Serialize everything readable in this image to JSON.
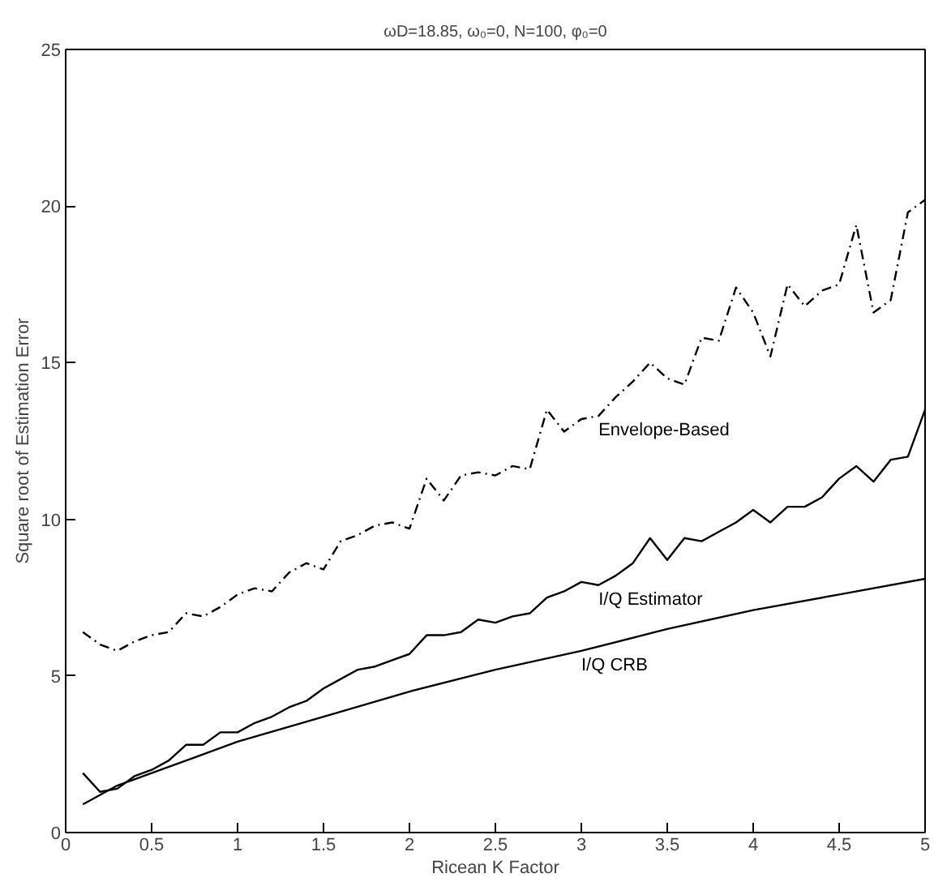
{
  "chart_data": {
    "type": "line",
    "title": "ωD=18.85, ω₀=0, N=100, φ₀=0",
    "xlabel": "Ricean K Factor",
    "ylabel": "Square root of Estimation Error",
    "xlim": [
      0,
      5
    ],
    "ylim": [
      0,
      25
    ],
    "xticks": [
      0,
      0.5,
      1,
      1.5,
      2,
      2.5,
      3,
      3.5,
      4,
      4.5,
      5
    ],
    "yticks": [
      0,
      5,
      10,
      15,
      20,
      25
    ],
    "grid": false,
    "marker": "none",
    "series": [
      {
        "name": "Envelope-Based",
        "color": "#000000",
        "line_style": "dashdot",
        "x": [
          0.1,
          0.2,
          0.3,
          0.4,
          0.5,
          0.6,
          0.7,
          0.8,
          0.9,
          1.0,
          1.1,
          1.2,
          1.3,
          1.4,
          1.5,
          1.6,
          1.7,
          1.8,
          1.9,
          2.0,
          2.1,
          2.2,
          2.3,
          2.4,
          2.5,
          2.6,
          2.7,
          2.8,
          2.9,
          3.0,
          3.1,
          3.2,
          3.3,
          3.4,
          3.5,
          3.6,
          3.7,
          3.8,
          3.9,
          4.0,
          4.1,
          4.2,
          4.3,
          4.4,
          4.5,
          4.6,
          4.7,
          4.8,
          4.9,
          5.0
        ],
        "values": [
          6.4,
          6.0,
          5.8,
          6.1,
          6.3,
          6.4,
          7.0,
          6.9,
          7.2,
          7.6,
          7.8,
          7.7,
          8.3,
          8.6,
          8.4,
          9.3,
          9.5,
          9.8,
          9.9,
          9.7,
          11.3,
          10.6,
          11.4,
          11.5,
          11.4,
          11.7,
          11.6,
          13.5,
          12.8,
          13.2,
          13.3,
          13.9,
          14.4,
          15.0,
          14.5,
          14.3,
          15.8,
          15.7,
          17.4,
          16.6,
          15.2,
          17.5,
          16.8,
          17.3,
          17.5,
          19.4,
          16.6,
          17.0,
          19.8,
          20.2
        ]
      },
      {
        "name": "I/Q Estimator",
        "color": "#000000",
        "line_style": "solid",
        "x": [
          0.1,
          0.2,
          0.3,
          0.4,
          0.5,
          0.6,
          0.7,
          0.8,
          0.9,
          1.0,
          1.1,
          1.2,
          1.3,
          1.4,
          1.5,
          1.6,
          1.7,
          1.8,
          1.9,
          2.0,
          2.1,
          2.2,
          2.3,
          2.4,
          2.5,
          2.6,
          2.7,
          2.8,
          2.9,
          3.0,
          3.1,
          3.2,
          3.3,
          3.4,
          3.5,
          3.6,
          3.7,
          3.8,
          3.9,
          4.0,
          4.1,
          4.2,
          4.3,
          4.4,
          4.5,
          4.6,
          4.7,
          4.8,
          4.9,
          5.0
        ],
        "values": [
          1.9,
          1.3,
          1.4,
          1.8,
          2.0,
          2.3,
          2.8,
          2.8,
          3.2,
          3.2,
          3.5,
          3.7,
          4.0,
          4.2,
          4.6,
          4.9,
          5.2,
          5.3,
          5.5,
          5.7,
          6.3,
          6.3,
          6.4,
          6.8,
          6.7,
          6.9,
          7.0,
          7.5,
          7.7,
          8.0,
          7.9,
          8.2,
          8.6,
          9.4,
          8.7,
          9.4,
          9.3,
          9.6,
          9.9,
          10.3,
          9.9,
          10.4,
          10.4,
          10.7,
          11.3,
          11.7,
          11.2,
          11.9,
          12.0,
          13.5
        ]
      },
      {
        "name": "I/Q CRB",
        "color": "#000000",
        "line_style": "solid",
        "x": [
          0.1,
          0.3,
          0.5,
          0.75,
          1.0,
          1.5,
          2.0,
          2.5,
          3.0,
          3.5,
          4.0,
          4.5,
          5.0
        ],
        "values": [
          0.9,
          1.5,
          1.9,
          2.4,
          2.9,
          3.7,
          4.5,
          5.2,
          5.8,
          6.5,
          7.1,
          7.6,
          8.1
        ]
      }
    ]
  }
}
